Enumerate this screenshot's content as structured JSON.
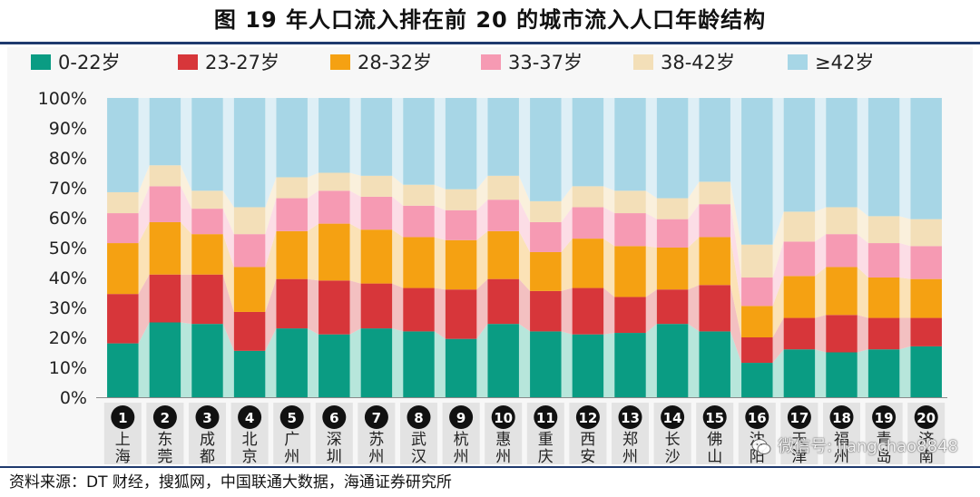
{
  "title": "图  19 年人口流入排在前 20 的城市流入人口年龄结构",
  "source": "资料来源：DT 财经，搜狐网，中国联通大数据，海通证券研究所",
  "watermark": "微信号: jiangchao8848",
  "chart_data": {
    "type": "bar",
    "stacked": true,
    "percent_stacked": true,
    "title": "",
    "xlabel": "",
    "ylabel": "",
    "ylim": [
      0,
      100
    ],
    "yticks": [
      "0%",
      "10%",
      "20%",
      "30%",
      "40%",
      "50%",
      "60%",
      "70%",
      "80%",
      "90%",
      "100%"
    ],
    "legend_position": "top",
    "grid": false,
    "categories": [
      {
        "rank": "1",
        "name": "上海"
      },
      {
        "rank": "2",
        "name": "东莞"
      },
      {
        "rank": "3",
        "name": "成都"
      },
      {
        "rank": "4",
        "name": "北京"
      },
      {
        "rank": "5",
        "name": "广州"
      },
      {
        "rank": "6",
        "name": "深圳"
      },
      {
        "rank": "7",
        "name": "苏州"
      },
      {
        "rank": "8",
        "name": "武汉"
      },
      {
        "rank": "9",
        "name": "杭州"
      },
      {
        "rank": "10",
        "name": "惠州"
      },
      {
        "rank": "11",
        "name": "重庆"
      },
      {
        "rank": "12",
        "name": "西安"
      },
      {
        "rank": "13",
        "name": "郑州"
      },
      {
        "rank": "14",
        "name": "长沙"
      },
      {
        "rank": "15",
        "name": "佛山"
      },
      {
        "rank": "16",
        "name": "沈阳"
      },
      {
        "rank": "17",
        "name": "天津"
      },
      {
        "rank": "18",
        "name": "福州"
      },
      {
        "rank": "19",
        "name": "青岛"
      },
      {
        "rank": "20",
        "name": "济南"
      }
    ],
    "series": [
      {
        "name": "0-22岁",
        "color": "#0a9c83",
        "light": "#b7e6db",
        "values": [
          18,
          25,
          24.5,
          15.5,
          23,
          21,
          23,
          22,
          19.5,
          24.5,
          22,
          21,
          21.5,
          24.5,
          22,
          11.5,
          16,
          15,
          16,
          17
        ]
      },
      {
        "name": "23-27岁",
        "color": "#d7363a",
        "light": "#f3c0c1",
        "values": [
          16.5,
          16,
          16.5,
          13,
          16.5,
          18,
          15,
          14.5,
          16.5,
          15,
          13.5,
          15.5,
          12,
          11.5,
          15.5,
          8.5,
          10.5,
          12.5,
          10.5,
          9.5
        ]
      },
      {
        "name": "28-32岁",
        "color": "#f5a112",
        "light": "#fbe2b6",
        "values": [
          17,
          17.5,
          13.5,
          15,
          16,
          19,
          18,
          17,
          16.5,
          16,
          13,
          16.5,
          17,
          14,
          16,
          10.5,
          14,
          16,
          13.5,
          13
        ]
      },
      {
        "name": "33-37岁",
        "color": "#f69ab3",
        "light": "#fcdde6",
        "values": [
          10,
          12,
          8.5,
          11,
          11,
          11,
          11,
          10.5,
          10,
          10.5,
          10,
          10.5,
          11,
          9.5,
          11,
          9.5,
          11.5,
          11,
          11.5,
          11
        ]
      },
      {
        "name": "38-42岁",
        "color": "#f3dfb8",
        "light": "#faf0dc",
        "values": [
          7,
          7,
          6,
          9,
          7,
          6,
          7,
          7,
          7,
          8,
          7,
          7,
          7.5,
          7,
          7.5,
          11,
          10,
          9,
          9,
          9
        ]
      },
      {
        "name": "≥42岁",
        "color": "#a7d6e6",
        "light": "#deeff6",
        "values": [
          31.5,
          22.5,
          31,
          36.5,
          26.5,
          25,
          26,
          29,
          30.5,
          26,
          34.5,
          29.5,
          31,
          33.5,
          28,
          49,
          38,
          36.5,
          39.5,
          40.5
        ]
      }
    ]
  }
}
